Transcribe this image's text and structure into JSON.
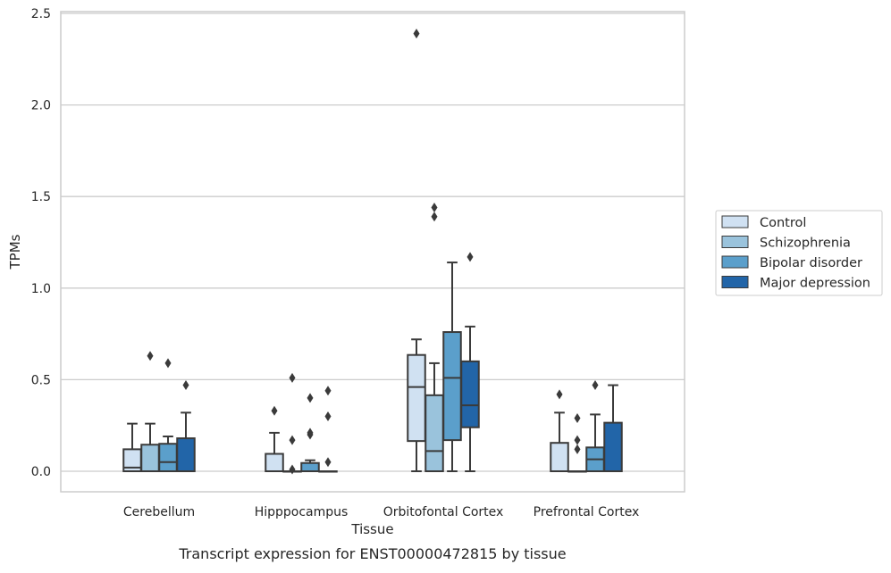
{
  "chart_data": {
    "type": "box",
    "title": "Transcript expression for ENST00000472815 by tissue",
    "xlabel": "Tissue",
    "ylabel": "TPMs",
    "ylim": [
      -0.12,
      2.52
    ],
    "yticks": [
      0.0,
      0.5,
      1.0,
      1.5,
      2.0,
      2.5
    ],
    "ytick_labels": [
      "0.0",
      "0.5",
      "1.0",
      "1.5",
      "2.0",
      "2.5"
    ],
    "grid": "horizontal",
    "legend_position": "right",
    "categories": [
      "Cerebellum",
      "Hipppocampus",
      "Orbitofontal Cortex",
      "Prefrontal Cortex"
    ],
    "series": [
      {
        "name": "Control",
        "color": "#d0e1f2",
        "boxes": [
          {
            "q1": 0.0,
            "median": 0.02,
            "q3": 0.12,
            "whisker_low": 0.0,
            "whisker_high": 0.26,
            "outliers": []
          },
          {
            "q1": 0.0,
            "median": 0.0,
            "q3": 0.095,
            "whisker_low": 0.0,
            "whisker_high": 0.21,
            "outliers": [
              0.33
            ]
          },
          {
            "q1": 0.165,
            "median": 0.46,
            "q3": 0.635,
            "whisker_low": 0.0,
            "whisker_high": 0.72,
            "outliers": [
              2.39
            ]
          },
          {
            "q1": 0.0,
            "median": 0.0,
            "q3": 0.155,
            "whisker_low": 0.0,
            "whisker_high": 0.32,
            "outliers": [
              0.42
            ]
          }
        ]
      },
      {
        "name": "Schizophrenia",
        "color": "#9ac3dc",
        "boxes": [
          {
            "q1": 0.0,
            "median": 0.0,
            "q3": 0.145,
            "whisker_low": 0.0,
            "whisker_high": 0.26,
            "outliers": [
              0.63
            ]
          },
          {
            "q1": 0.0,
            "median": 0.0,
            "q3": 0.0,
            "whisker_low": 0.0,
            "whisker_high": 0.0,
            "outliers": [
              0.17,
              0.51,
              0.01
            ]
          },
          {
            "q1": 0.0,
            "median": 0.11,
            "q3": 0.415,
            "whisker_low": 0.0,
            "whisker_high": 0.59,
            "outliers": [
              1.39,
              1.44
            ]
          },
          {
            "q1": 0.0,
            "median": 0.0,
            "q3": 0.0,
            "whisker_low": 0.0,
            "whisker_high": 0.0,
            "outliers": [
              0.12,
              0.17,
              0.29
            ]
          }
        ]
      },
      {
        "name": "Bipolar disorder",
        "color": "#5b9fcb",
        "boxes": [
          {
            "q1": 0.0,
            "median": 0.05,
            "q3": 0.15,
            "whisker_low": 0.0,
            "whisker_high": 0.19,
            "outliers": [
              0.59
            ]
          },
          {
            "q1": 0.0,
            "median": 0.0,
            "q3": 0.045,
            "whisker_low": 0.0,
            "whisker_high": 0.06,
            "outliers": [
              0.2,
              0.21,
              0.4
            ]
          },
          {
            "q1": 0.17,
            "median": 0.51,
            "q3": 0.76,
            "whisker_low": 0.0,
            "whisker_high": 1.14,
            "outliers": []
          },
          {
            "q1": 0.0,
            "median": 0.065,
            "q3": 0.13,
            "whisker_low": 0.0,
            "whisker_high": 0.31,
            "outliers": [
              0.47
            ]
          }
        ]
      },
      {
        "name": "Major depression",
        "color": "#2265a8",
        "boxes": [
          {
            "q1": 0.0,
            "median": 0.0,
            "q3": 0.18,
            "whisker_low": 0.0,
            "whisker_high": 0.32,
            "outliers": [
              0.47
            ]
          },
          {
            "q1": 0.0,
            "median": 0.0,
            "q3": 0.0,
            "whisker_low": 0.0,
            "whisker_high": 0.0,
            "outliers": [
              0.05,
              0.3,
              0.44
            ]
          },
          {
            "q1": 0.24,
            "median": 0.36,
            "q3": 0.6,
            "whisker_low": 0.0,
            "whisker_high": 0.79,
            "outliers": [
              1.17
            ]
          },
          {
            "q1": 0.0,
            "median": 0.0,
            "q3": 0.265,
            "whisker_low": 0.0,
            "whisker_high": 0.47,
            "outliers": []
          }
        ]
      }
    ]
  }
}
